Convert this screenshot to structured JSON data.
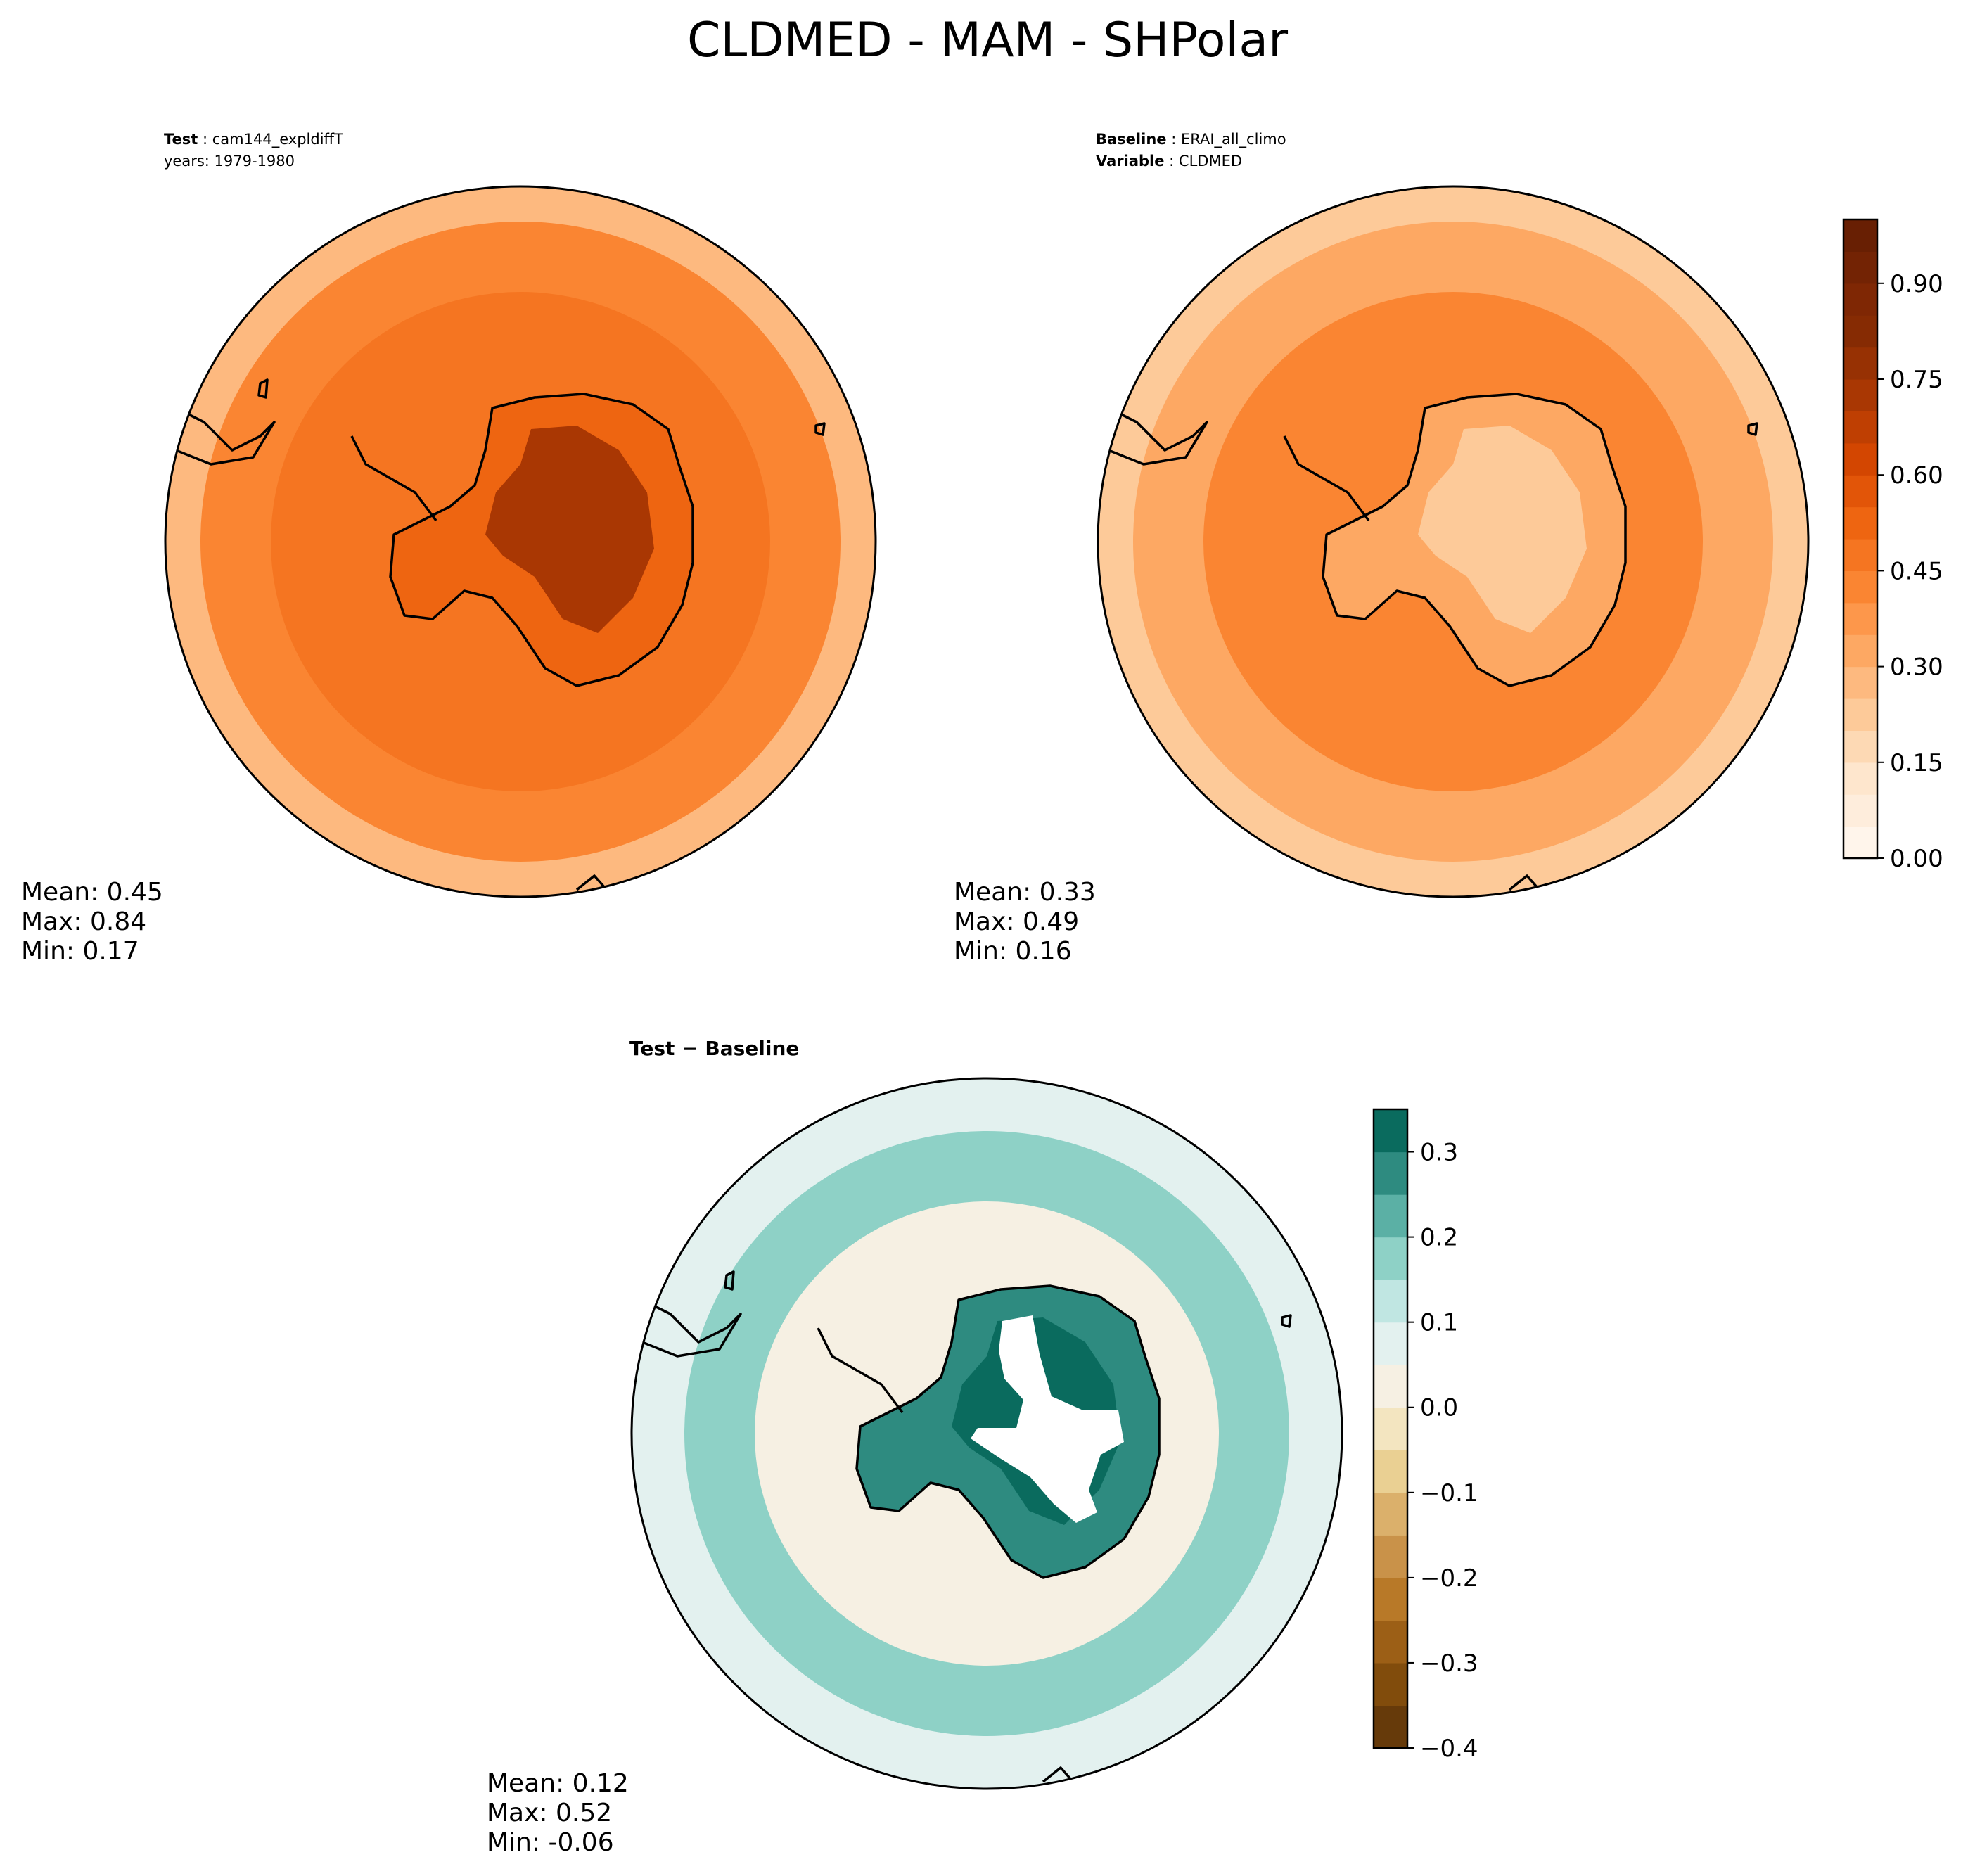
{
  "figure": {
    "title": "CLDMED - MAM - SHPolar"
  },
  "chart_data": [
    {
      "type": "heatmap",
      "name": "test",
      "header_label": "Test",
      "header_value": "cam144_expldiffT",
      "subheader": "years: 1979-1980",
      "stats": {
        "mean_label": "Mean:  0.45",
        "max_label": "Max:  0.84",
        "min_label": "Min:  0.17"
      },
      "field": {
        "coast": 0.52,
        "inland": 0.7,
        "ocean_inner": 0.48,
        "ocean_outer": 0.4,
        "rim": 0.28
      },
      "colormap": "Oranges"
    },
    {
      "type": "heatmap",
      "name": "baseline",
      "header_label": "Baseline",
      "header_value": "ERAI_all_climo",
      "subheader_label": "Variable",
      "subheader_value": "CLDMED",
      "stats": {
        "mean_label": "Mean:  0.33",
        "max_label": "Max:  0.49",
        "min_label": "Min:  0.16"
      },
      "field": {
        "coast": 0.33,
        "inland": 0.2,
        "ocean_inner": 0.4,
        "ocean_outer": 0.34,
        "rim": 0.2
      },
      "colormap": "Oranges"
    },
    {
      "type": "heatmap",
      "name": "difference",
      "header_label": "Test − Baseline",
      "stats": {
        "mean_label": "Mean:  0.12",
        "max_label": "Max:  0.52",
        "min_label": "Min: -0.06"
      },
      "field": {
        "coast": 0.25,
        "inland": 0.4,
        "ocean_inner": 0.04,
        "ocean_outer": 0.16,
        "rim": 0.07
      },
      "colormap": "BrBG"
    }
  ],
  "colorbars": [
    {
      "name": "test-baseline-colorbar",
      "range": [
        0.0,
        1.0
      ],
      "levels": 20,
      "ticks": [
        "0.00",
        "0.15",
        "0.30",
        "0.45",
        "0.60",
        "0.75",
        "0.90"
      ],
      "tick_values": [
        0.0,
        0.15,
        0.3,
        0.45,
        0.6,
        0.75,
        0.9
      ],
      "colors": [
        "#fff5eb",
        "#feeddc",
        "#fee6cd",
        "#fdd9b4",
        "#fdca99",
        "#fdb97f",
        "#fda863",
        "#fd974b",
        "#fa8532",
        "#f57521",
        "#ee6511",
        "#e25508",
        "#d34601",
        "#bf3f02",
        "#a93703",
        "#973103",
        "#862b03",
        "#7f2704",
        "#732304",
        "#681f03"
      ]
    },
    {
      "name": "difference-colorbar",
      "range": [
        -0.4,
        0.35
      ],
      "levels": 15,
      "ticks": [
        "−0.4",
        "−0.3",
        "−0.2",
        "−0.1",
        "0.0",
        "0.1",
        "0.2",
        "0.3"
      ],
      "tick_values": [
        -0.4,
        -0.3,
        -0.2,
        -0.1,
        0.0,
        0.1,
        0.2,
        0.3
      ],
      "colors": [
        "#663a0a",
        "#814c0c",
        "#9c5f16",
        "#b87928",
        "#c99249",
        "#dbb06b",
        "#ead093",
        "#f3e5c0",
        "#f6f0e3",
        "#e3f1ef",
        "#c0e6e2",
        "#8ed1c6",
        "#5bb0a5",
        "#2e8b80",
        "#0a6b5e"
      ]
    }
  ]
}
